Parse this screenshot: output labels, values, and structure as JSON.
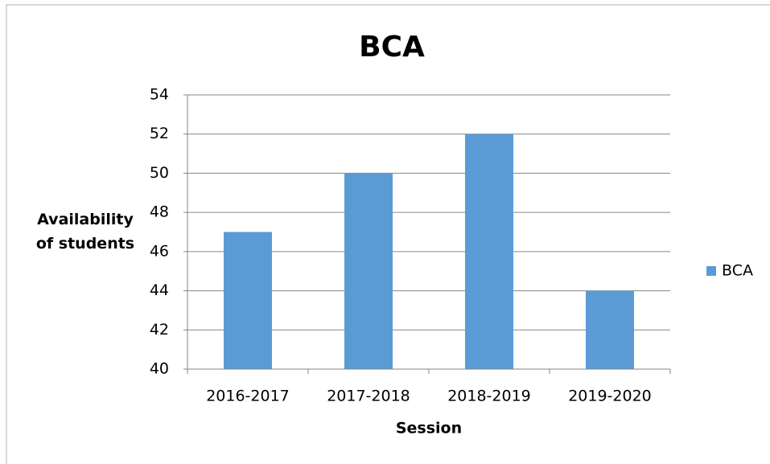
{
  "chart_data": {
    "type": "bar",
    "title": "BCA",
    "x_label": "Session",
    "y_label": "Availability of students",
    "categories": [
      "2016-2017",
      "2017-2018",
      "2018-2019",
      "2019-2020"
    ],
    "series": [
      {
        "name": "BCA",
        "color": "#5b9bd5",
        "values": [
          47,
          50,
          52,
          44
        ]
      }
    ],
    "ylim": [
      40,
      54
    ],
    "yticks": [
      40,
      42,
      44,
      46,
      48,
      50,
      52,
      54
    ],
    "grid": true,
    "legend": "right"
  }
}
